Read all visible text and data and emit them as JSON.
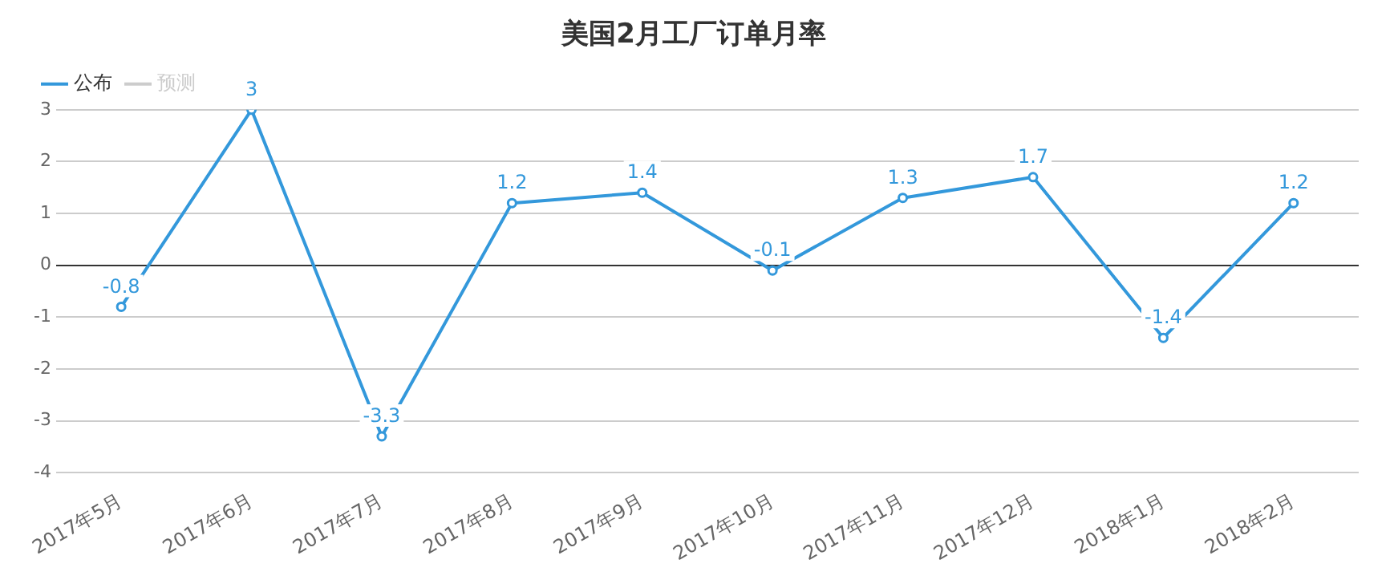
{
  "chart_data": {
    "type": "line",
    "title": "美国2月工厂订单月率",
    "categories": [
      "2017年5月",
      "2017年6月",
      "2017年7月",
      "2017年8月",
      "2017年9月",
      "2017年10月",
      "2017年11月",
      "2017年12月",
      "2018年1月",
      "2018年2月"
    ],
    "series": [
      {
        "name": "公布",
        "color": "#3398db",
        "values": [
          -0.8,
          3,
          -3.3,
          1.2,
          1.4,
          -0.1,
          1.3,
          1.7,
          -1.4,
          1.2
        ]
      },
      {
        "name": "预测",
        "color": "#cccccc",
        "values": [
          null,
          null,
          null,
          null,
          null,
          null,
          null,
          null,
          null,
          null
        ]
      }
    ],
    "ylim": [
      -4,
      3
    ],
    "yticks": [
      -4,
      -3,
      -2,
      -1,
      0,
      1,
      2,
      3
    ],
    "grid": "y",
    "legend": "top left",
    "marker": "circle",
    "line_style": "solid",
    "data_labels": true
  }
}
